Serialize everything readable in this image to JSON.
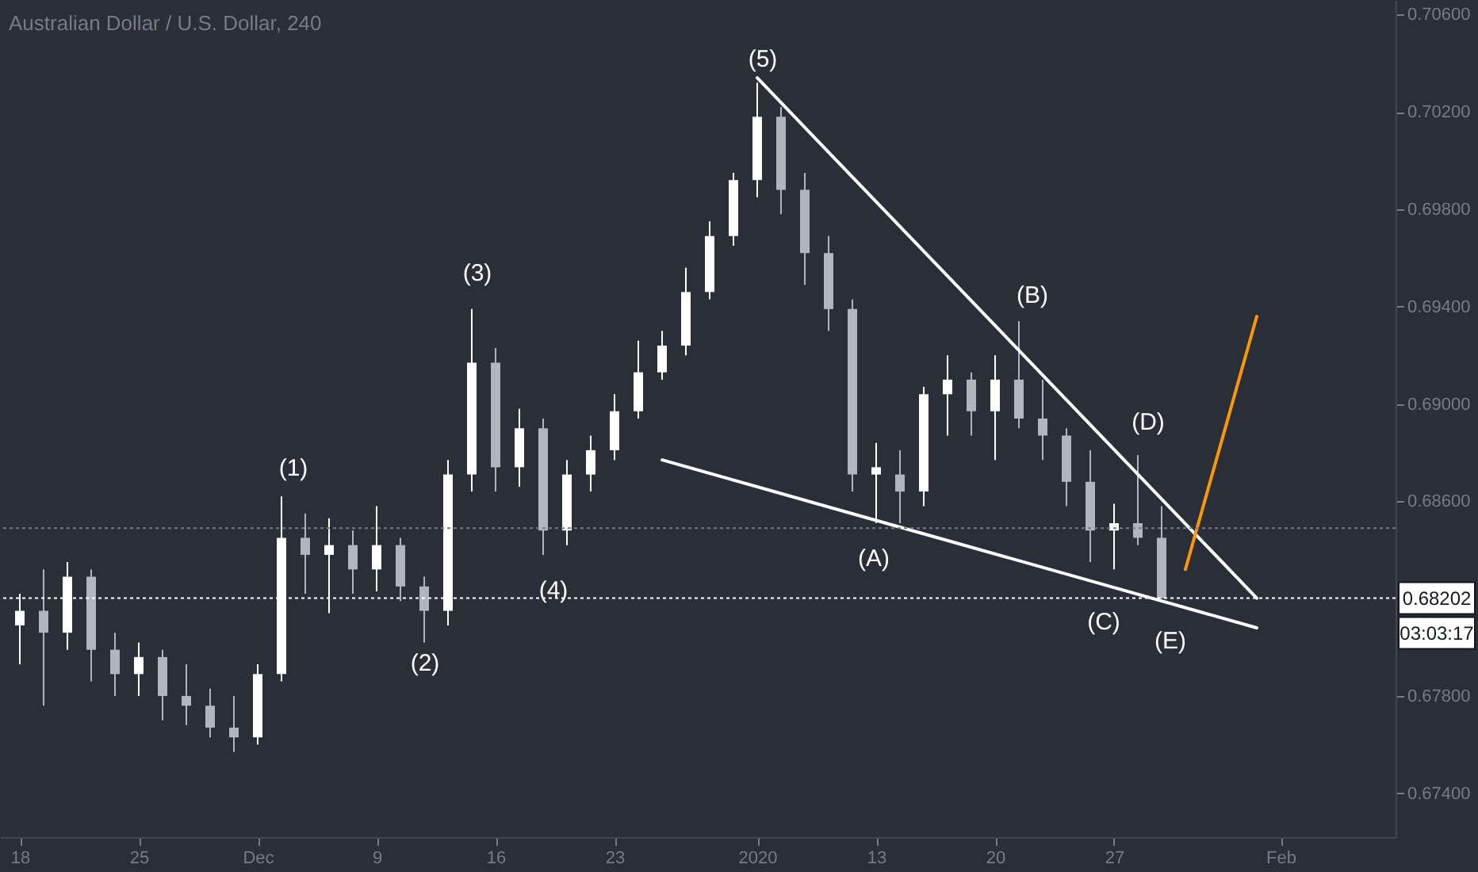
{
  "chart_data": {
    "type": "candlestick",
    "title": "Australian Dollar / U.S. Dollar, 240",
    "categories": [
      "18",
      null,
      null,
      null,
      null,
      "25",
      null,
      null,
      null,
      null,
      "Dec",
      null,
      null,
      null,
      null,
      "9",
      null,
      null,
      null,
      null,
      "16",
      null,
      null,
      null,
      null,
      "23",
      null,
      null,
      null,
      null,
      null,
      "2020",
      null,
      null,
      null,
      null,
      "13",
      null,
      null,
      null,
      null,
      "20",
      null,
      null,
      null,
      null,
      "27",
      null,
      null,
      null,
      null,
      null,
      null,
      "Feb",
      null,
      null,
      null,
      null
    ],
    "ohlc": [
      [
        0.6809,
        0.6822,
        0.6793,
        0.6815
      ],
      [
        0.6815,
        0.6832,
        0.6776,
        0.6806
      ],
      [
        0.6806,
        0.6835,
        0.6799,
        0.6829
      ],
      [
        0.6829,
        0.6832,
        0.6786,
        0.6799
      ],
      [
        0.6799,
        0.6806,
        0.678,
        0.6789
      ],
      [
        0.6789,
        0.6802,
        0.678,
        0.6796
      ],
      [
        0.6796,
        0.6799,
        0.677,
        0.678
      ],
      [
        0.678,
        0.6793,
        0.6768,
        0.6776
      ],
      [
        0.6776,
        0.6783,
        0.6763,
        0.6767
      ],
      [
        0.6767,
        0.678,
        0.6757,
        0.6763
      ],
      [
        0.6763,
        0.6793,
        0.676,
        0.6789
      ],
      [
        0.6789,
        0.6862,
        0.6786,
        0.6845
      ],
      [
        0.6845,
        0.6855,
        0.6822,
        0.6838
      ],
      [
        0.6838,
        0.6853,
        0.6814,
        0.6842
      ],
      [
        0.6842,
        0.6848,
        0.6822,
        0.6832
      ],
      [
        0.6832,
        0.6858,
        0.6823,
        0.6842
      ],
      [
        0.6842,
        0.6845,
        0.6819,
        0.6825
      ],
      [
        0.6825,
        0.6829,
        0.6802,
        0.6815
      ],
      [
        0.6815,
        0.6877,
        0.6809,
        0.6871
      ],
      [
        0.6871,
        0.6939,
        0.6864,
        0.6917
      ],
      [
        0.6917,
        0.6923,
        0.6864,
        0.6874
      ],
      [
        0.6874,
        0.6898,
        0.6866,
        0.689
      ],
      [
        0.689,
        0.6894,
        0.6838,
        0.6848
      ],
      [
        0.6848,
        0.6877,
        0.6842,
        0.6871
      ],
      [
        0.6871,
        0.6887,
        0.6864,
        0.6881
      ],
      [
        0.6881,
        0.6904,
        0.6877,
        0.6897
      ],
      [
        0.6897,
        0.6926,
        0.6894,
        0.6913
      ],
      [
        0.6913,
        0.693,
        0.691,
        0.6924
      ],
      [
        0.6924,
        0.6956,
        0.692,
        0.6946
      ],
      [
        0.6946,
        0.6975,
        0.6943,
        0.6969
      ],
      [
        0.6969,
        0.6995,
        0.6965,
        0.6992
      ],
      [
        0.6992,
        0.7032,
        0.6985,
        0.7018
      ],
      [
        0.7018,
        0.7022,
        0.6978,
        0.6988
      ],
      [
        0.6988,
        0.6995,
        0.6949,
        0.6962
      ],
      [
        0.6962,
        0.6969,
        0.693,
        0.6939
      ],
      [
        0.6939,
        0.6943,
        0.6864,
        0.6871
      ],
      [
        0.6871,
        0.6884,
        0.6851,
        0.6874
      ],
      [
        0.6871,
        0.6881,
        0.6851,
        0.6864
      ],
      [
        0.6864,
        0.6907,
        0.6858,
        0.6904
      ],
      [
        0.6904,
        0.692,
        0.6887,
        0.691
      ],
      [
        0.691,
        0.6913,
        0.6887,
        0.6897
      ],
      [
        0.6897,
        0.692,
        0.6877,
        0.691
      ],
      [
        0.691,
        0.6934,
        0.689,
        0.6894
      ],
      [
        0.6894,
        0.691,
        0.6877,
        0.6887
      ],
      [
        0.6887,
        0.689,
        0.6858,
        0.6868
      ],
      [
        0.6868,
        0.6881,
        0.6835,
        0.6848
      ],
      [
        0.6848,
        0.6859,
        0.6832,
        0.6851
      ],
      [
        0.6851,
        0.6879,
        0.6842,
        0.6845
      ],
      [
        0.6845,
        0.6858,
        0.682,
        0.68202
      ],
      null,
      null,
      null,
      null,
      null,
      null,
      null,
      null,
      null
    ],
    "colors": [
      "#ffffff",
      "#b2b5be",
      "#ffffff",
      "#b2b5be",
      "#b2b5be",
      "#ffffff",
      "#b2b5be",
      "#b2b5be",
      "#b2b5be",
      "#b2b5be",
      "#ffffff",
      "#ffffff",
      "#b2b5be",
      "#ffffff",
      "#b2b5be",
      "#ffffff",
      "#b2b5be",
      "#b2b5be",
      "#ffffff",
      "#ffffff",
      "#b2b5be",
      "#ffffff",
      "#b2b5be",
      "#ffffff",
      "#ffffff",
      "#ffffff",
      "#ffffff",
      "#ffffff",
      "#ffffff",
      "#ffffff",
      "#ffffff",
      "#ffffff",
      "#b2b5be",
      "#b2b5be",
      "#b2b5be",
      "#b2b5be",
      "#ffffff",
      "#b2b5be",
      "#ffffff",
      "#ffffff",
      "#b2b5be",
      "#ffffff",
      "#b2b5be",
      "#b2b5be",
      "#b2b5be",
      "#b2b5be",
      "#ffffff",
      "#b2b5be",
      "#b2b5be",
      null,
      null,
      null,
      null,
      null,
      null,
      null,
      null,
      null
    ],
    "series": [
      {
        "type": "line",
        "color": "#ffffff",
        "values": [
          null,
          null,
          null,
          null,
          null,
          null,
          null,
          null,
          null,
          null,
          null,
          null,
          null,
          null,
          null,
          null,
          null,
          null,
          null,
          null,
          null,
          null,
          null,
          null,
          null,
          null,
          null,
          null,
          null,
          null,
          null,
          0.7034,
          null,
          null,
          null,
          null,
          null,
          null,
          null,
          null,
          null,
          null,
          null,
          null,
          null,
          null,
          null,
          null,
          null,
          null,
          null,
          null,
          0.68202,
          null,
          null,
          null,
          null,
          null
        ]
      },
      {
        "type": "line",
        "color": "#ffffff",
        "values": [
          null,
          null,
          null,
          null,
          null,
          null,
          null,
          null,
          null,
          null,
          null,
          null,
          null,
          null,
          null,
          null,
          null,
          null,
          null,
          null,
          null,
          null,
          null,
          null,
          null,
          null,
          null,
          0.6877,
          null,
          null,
          null,
          null,
          null,
          null,
          null,
          null,
          null,
          null,
          null,
          null,
          null,
          null,
          null,
          null,
          null,
          null,
          null,
          null,
          null,
          null,
          null,
          null,
          0.6808,
          null,
          null,
          null,
          null,
          null
        ]
      },
      {
        "type": "line",
        "color": "#ff9800",
        "values": [
          null,
          null,
          null,
          null,
          null,
          null,
          null,
          null,
          null,
          null,
          null,
          null,
          null,
          null,
          null,
          null,
          null,
          null,
          null,
          null,
          null,
          null,
          null,
          null,
          null,
          null,
          null,
          null,
          null,
          null,
          null,
          null,
          null,
          null,
          null,
          null,
          null,
          null,
          null,
          null,
          null,
          null,
          null,
          null,
          null,
          null,
          null,
          null,
          null,
          0.6832,
          null,
          null,
          0.6936,
          null,
          null,
          null,
          null,
          null
        ]
      }
    ],
    "ylim": [
      0.6722,
      0.7066
    ],
    "yticks": [
      {
        "value": 0.674,
        "label": "0.67400"
      },
      {
        "value": 0.678,
        "label": "0.67800"
      },
      {
        "value": 0.686,
        "label": "0.68600"
      },
      {
        "value": 0.69,
        "label": "0.69000"
      },
      {
        "value": 0.694,
        "label": "0.69400"
      },
      {
        "value": 0.698,
        "label": "0.69800"
      },
      {
        "value": 0.702,
        "label": "0.70200"
      },
      {
        "value": 0.706,
        "label": "0.70600"
      }
    ],
    "ref_lines": [
      {
        "axis": "y",
        "value": 0.68202,
        "label": "0.68202",
        "color": "#ffffff",
        "line_style": "dotted"
      },
      {
        "axis": "y",
        "value": 0.6849,
        "color": "#787b86",
        "line_style": "dotted"
      }
    ],
    "annotations": [
      "(1)",
      "(2)",
      "(3)",
      "(4)",
      "(5)",
      "(A)",
      "(B)",
      "(C)",
      "(D)",
      "(E)",
      "03:03:17"
    ],
    "grid": false
  }
}
